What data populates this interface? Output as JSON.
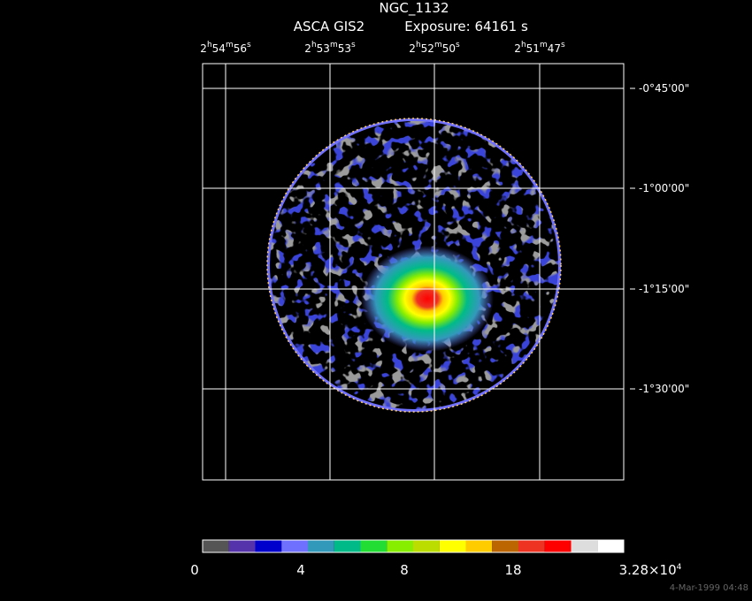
{
  "header": {
    "title": "NGC_1132",
    "instrument": "ASCA GIS2",
    "exposure": "Exposure: 64161 s"
  },
  "ra_labels": [
    [
      "2",
      "h",
      "54",
      "m",
      "56",
      "s"
    ],
    [
      "2",
      "h",
      "53",
      "m",
      "53",
      "s"
    ],
    [
      "2",
      "h",
      "52",
      "m",
      "50",
      "s"
    ],
    [
      "2",
      "h",
      "51",
      "m",
      "47",
      "s"
    ]
  ],
  "dec_labels": [
    "-0°45'00\"",
    "-1°00'00\"",
    "-1°15'00\"",
    "-1°30'00\""
  ],
  "colorbar": {
    "colors": [
      "#555555",
      "#5533aa",
      "#0000cc",
      "#7070ff",
      "#3399bb",
      "#00bb88",
      "#22dd33",
      "#88ee00",
      "#bbdd00",
      "#ffff00",
      "#ffcc00",
      "#bb6600",
      "#ee3322",
      "#ff0000",
      "#dddddd",
      "#ffffff"
    ],
    "labels": [
      [
        "0"
      ],
      [
        "4"
      ],
      [
        "8"
      ],
      [
        "18"
      ],
      [
        "3.28×10",
        "4"
      ]
    ]
  },
  "footer": {
    "date": "4-Mar-1999 04:48"
  }
}
